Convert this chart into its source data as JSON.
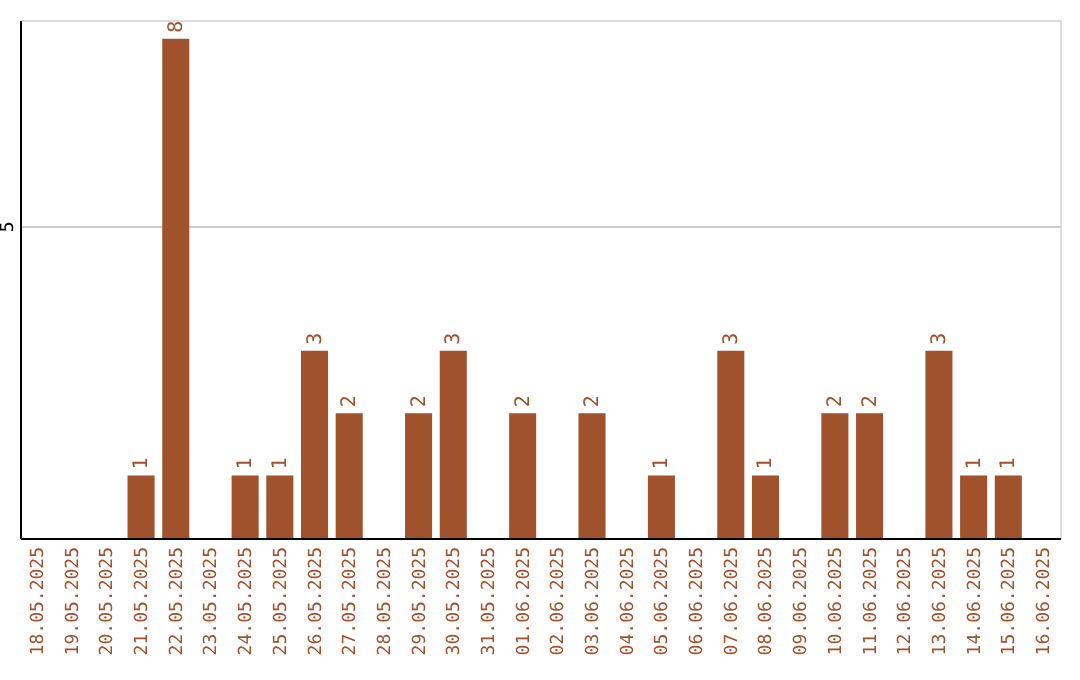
{
  "chart_data": {
    "type": "bar",
    "categories": [
      "18.05.2025",
      "19.05.2025",
      "20.05.2025",
      "21.05.2025",
      "22.05.2025",
      "23.05.2025",
      "24.05.2025",
      "25.05.2025",
      "26.05.2025",
      "27.05.2025",
      "28.05.2025",
      "29.05.2025",
      "30.05.2025",
      "31.05.2025",
      "01.06.2025",
      "02.06.2025",
      "03.06.2025",
      "04.06.2025",
      "05.06.2025",
      "06.06.2025",
      "07.06.2025",
      "08.06.2025",
      "09.06.2025",
      "10.06.2025",
      "11.06.2025",
      "12.06.2025",
      "13.06.2025",
      "14.06.2025",
      "15.06.2025",
      "16.06.2025"
    ],
    "values": [
      0,
      0,
      0,
      1,
      8,
      0,
      1,
      1,
      3,
      2,
      0,
      2,
      3,
      0,
      2,
      0,
      2,
      0,
      1,
      0,
      3,
      1,
      0,
      2,
      2,
      0,
      3,
      1,
      1,
      0
    ],
    "value_labels": [
      null,
      null,
      null,
      "1",
      "8",
      null,
      "1",
      "1",
      "3",
      "2",
      null,
      "2",
      "3",
      null,
      "2",
      null,
      "2",
      null,
      "1",
      null,
      "3",
      "1",
      null,
      "2",
      "2",
      null,
      "3",
      "1",
      "1",
      null
    ],
    "color": "#a0522d",
    "ylim": [
      0,
      8.3
    ],
    "yticks": [
      5
    ],
    "grid": "y"
  }
}
